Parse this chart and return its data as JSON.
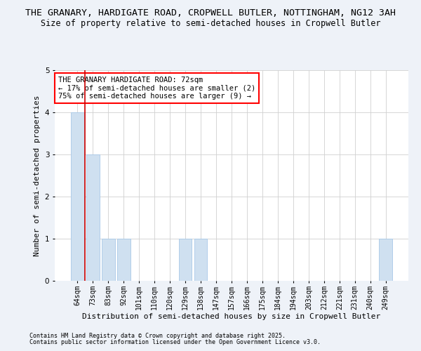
{
  "title": "THE GRANARY, HARDIGATE ROAD, CROPWELL BUTLER, NOTTINGHAM, NG12 3AH",
  "subtitle": "Size of property relative to semi-detached houses in Cropwell Butler",
  "xlabel": "Distribution of semi-detached houses by size in Cropwell Butler",
  "ylabel": "Number of semi-detached properties",
  "categories": [
    "64sqm",
    "73sqm",
    "83sqm",
    "92sqm",
    "101sqm",
    "110sqm",
    "120sqm",
    "129sqm",
    "138sqm",
    "147sqm",
    "157sqm",
    "166sqm",
    "175sqm",
    "184sqm",
    "194sqm",
    "203sqm",
    "212sqm",
    "221sqm",
    "231sqm",
    "240sqm",
    "249sqm"
  ],
  "values": [
    4,
    3,
    1,
    1,
    0,
    0,
    0,
    1,
    1,
    0,
    0,
    0,
    0,
    0,
    0,
    0,
    0,
    0,
    0,
    0,
    1
  ],
  "bar_color": "#cfe0f0",
  "bar_edgecolor": "#a8c8e8",
  "highlight_bar_index": 0,
  "vline_x": 0.5,
  "vline_color": "#cc0000",
  "ylim": [
    0,
    5
  ],
  "yticks": [
    0,
    1,
    2,
    3,
    4,
    5
  ],
  "annotation_text": "THE GRANARY HARDIGATE ROAD: 72sqm\n← 17% of semi-detached houses are smaller (2)\n75% of semi-detached houses are larger (9) →",
  "footer1": "Contains HM Land Registry data © Crown copyright and database right 2025.",
  "footer2": "Contains public sector information licensed under the Open Government Licence v3.0.",
  "background_color": "#eef2f8",
  "plot_background": "#ffffff",
  "grid_color": "#d0d0d0",
  "title_fontsize": 9.5,
  "subtitle_fontsize": 8.5,
  "xlabel_fontsize": 8,
  "ylabel_fontsize": 8,
  "tick_fontsize": 7,
  "annotation_fontsize": 7.5,
  "footer_fontsize": 6
}
